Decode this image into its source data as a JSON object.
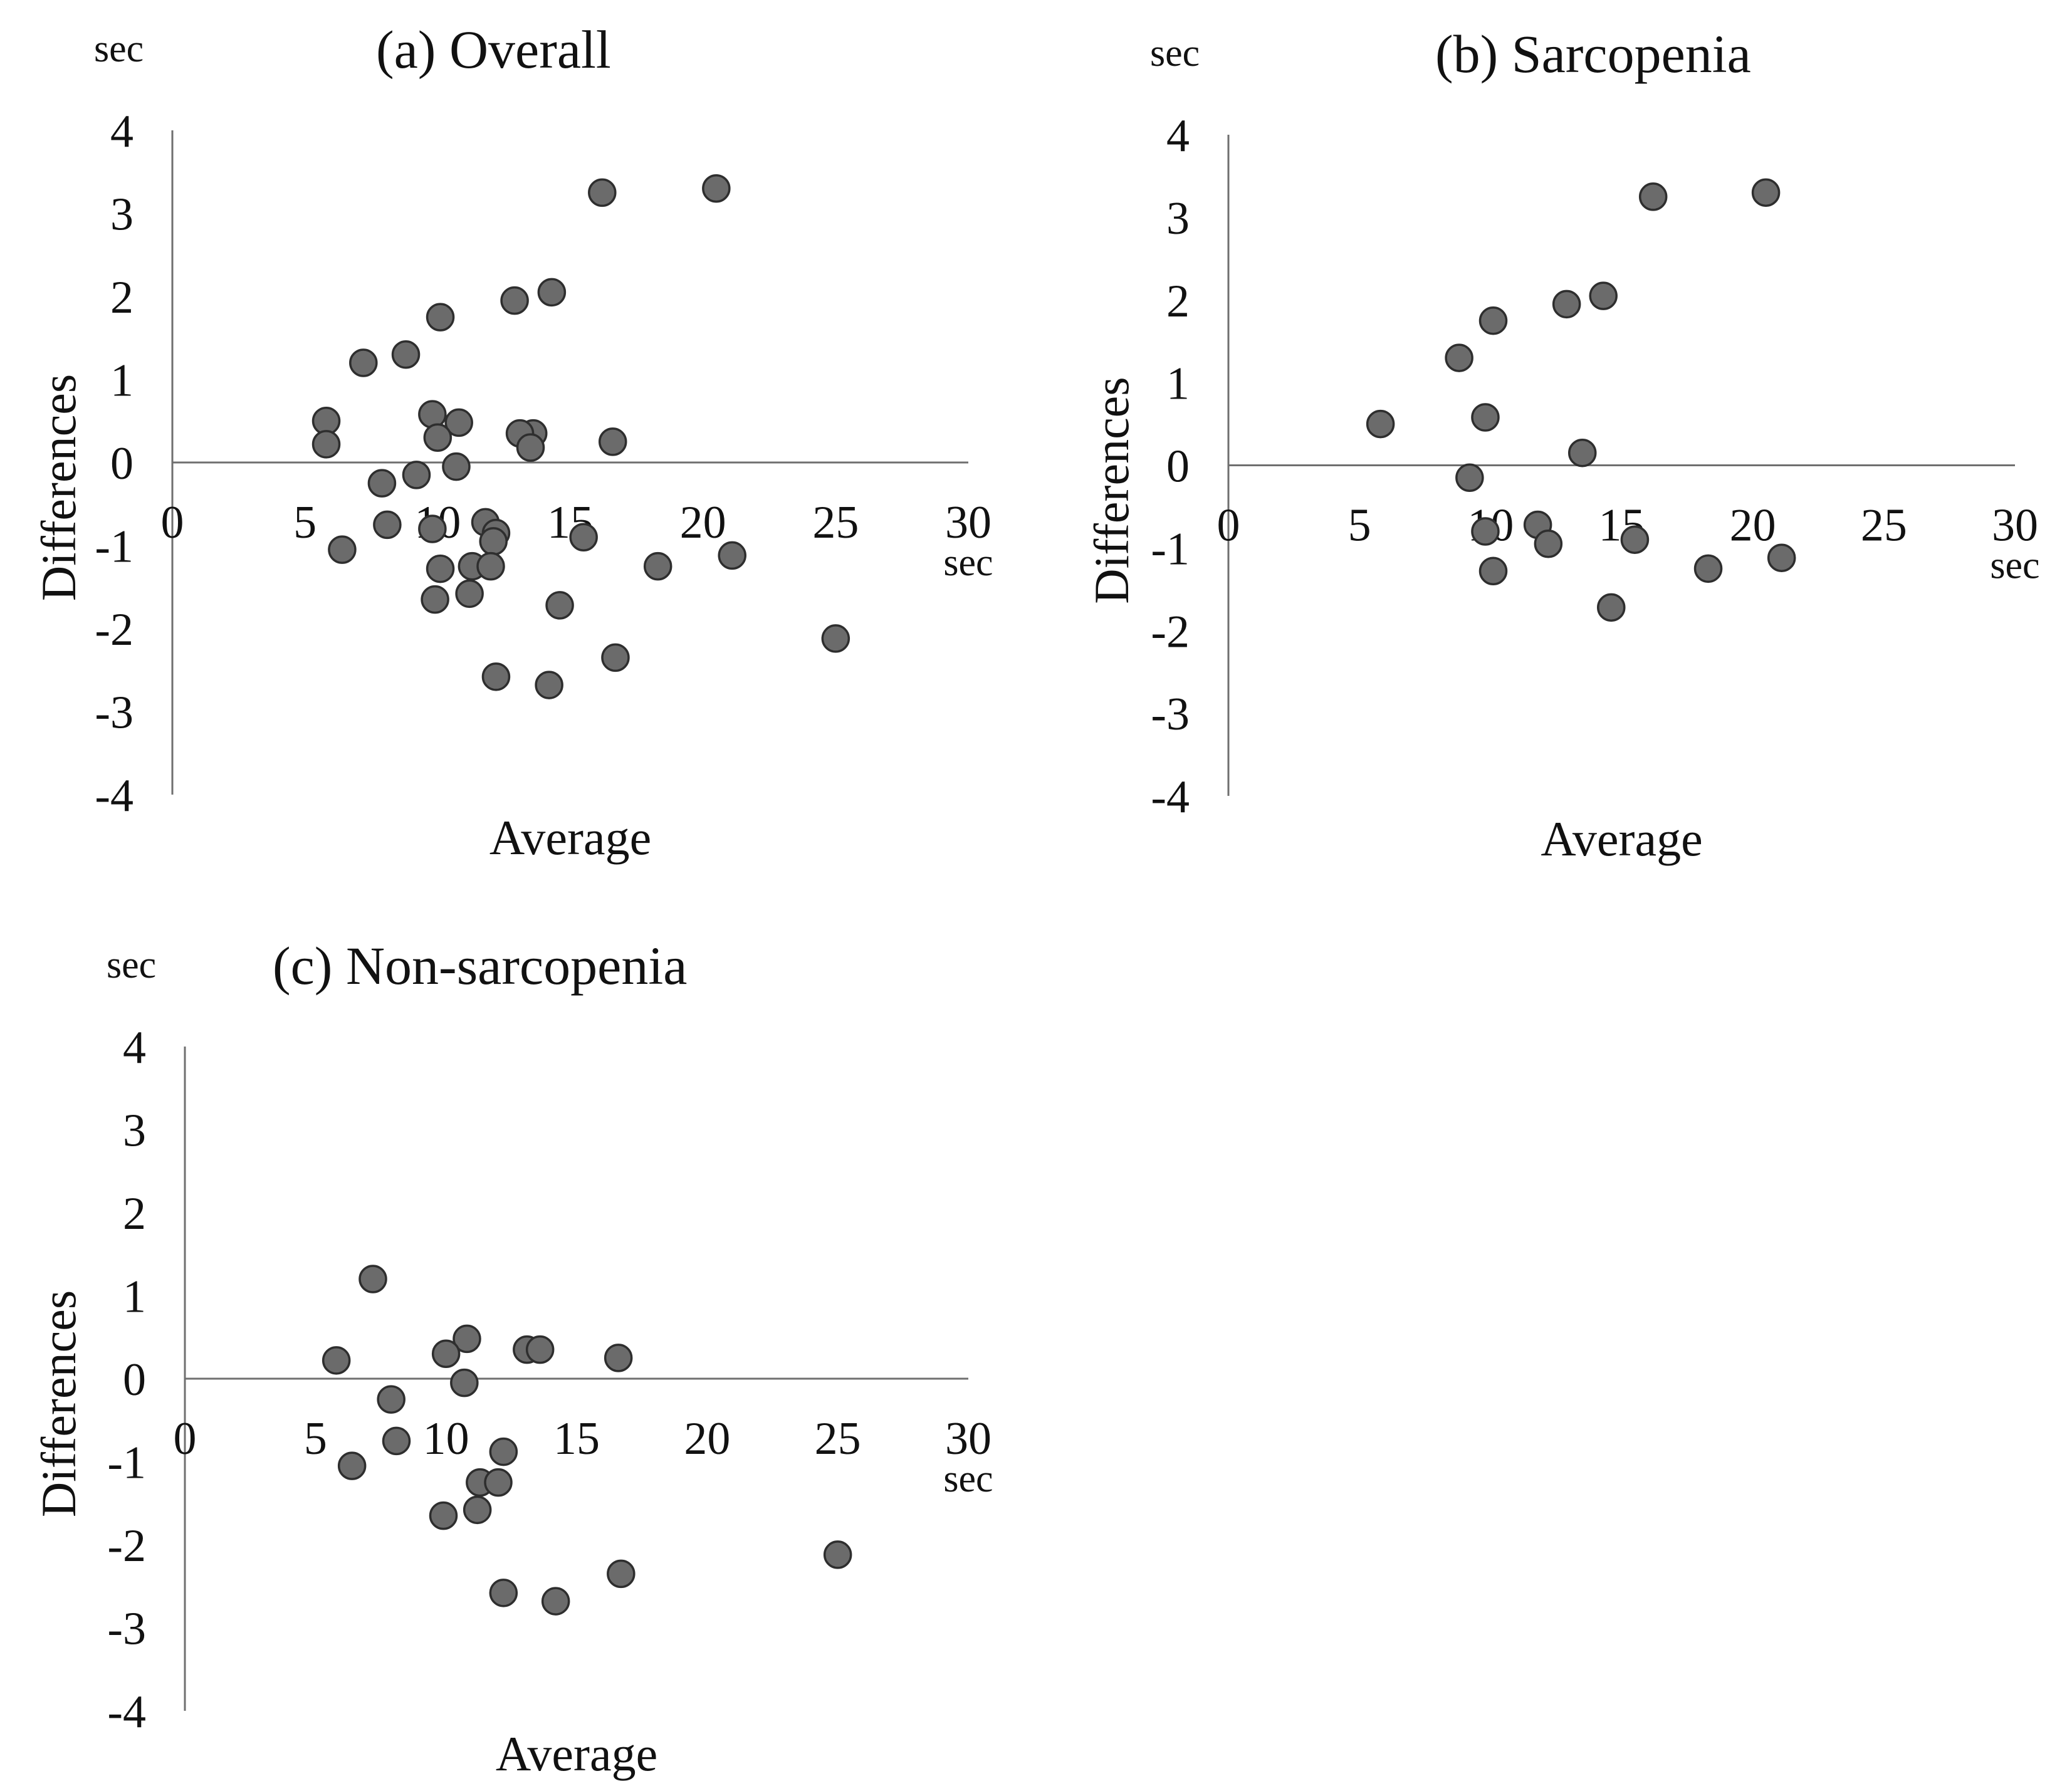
{
  "chart_data": [
    {
      "type": "scatter",
      "title": "(a) Overall",
      "xlabel": "Average",
      "ylabel": "Differences",
      "x_unit": "sec",
      "y_unit": "sec",
      "xlim": [
        0,
        30
      ],
      "ylim": [
        -4,
        4
      ],
      "xticks": [
        "0",
        "5",
        "10",
        "15",
        "20",
        "25",
        "30"
      ],
      "yticks": [
        "4",
        "3",
        "2",
        "1",
        "0",
        "-1",
        "-2",
        "-3",
        "-4"
      ],
      "grid": false,
      "marker_color": "#6b6b6b",
      "points": [
        {
          "x": 16.2,
          "y": 3.25
        },
        {
          "x": 20.5,
          "y": 3.3
        },
        {
          "x": 14.3,
          "y": 2.05
        },
        {
          "x": 12.9,
          "y": 1.95
        },
        {
          "x": 10.1,
          "y": 1.75
        },
        {
          "x": 8.8,
          "y": 1.3
        },
        {
          "x": 7.2,
          "y": 1.2
        },
        {
          "x": 5.8,
          "y": 0.5
        },
        {
          "x": 9.8,
          "y": 0.58
        },
        {
          "x": 10.8,
          "y": 0.48
        },
        {
          "x": 10.0,
          "y": 0.3
        },
        {
          "x": 5.8,
          "y": 0.22
        },
        {
          "x": 13.6,
          "y": 0.35
        },
        {
          "x": 13.1,
          "y": 0.35
        },
        {
          "x": 13.5,
          "y": 0.18
        },
        {
          "x": 16.6,
          "y": 0.25
        },
        {
          "x": 10.7,
          "y": -0.05
        },
        {
          "x": 9.2,
          "y": -0.15
        },
        {
          "x": 7.9,
          "y": -0.25
        },
        {
          "x": 8.1,
          "y": -0.75
        },
        {
          "x": 9.8,
          "y": -0.8
        },
        {
          "x": 11.8,
          "y": -0.72
        },
        {
          "x": 12.2,
          "y": -0.85
        },
        {
          "x": 12.1,
          "y": -0.95
        },
        {
          "x": 15.5,
          "y": -0.9
        },
        {
          "x": 6.4,
          "y": -1.05
        },
        {
          "x": 10.1,
          "y": -1.28
        },
        {
          "x": 11.3,
          "y": -1.25
        },
        {
          "x": 12.0,
          "y": -1.25
        },
        {
          "x": 18.3,
          "y": -1.25
        },
        {
          "x": 21.1,
          "y": -1.12
        },
        {
          "x": 9.9,
          "y": -1.65
        },
        {
          "x": 11.2,
          "y": -1.58
        },
        {
          "x": 14.6,
          "y": -1.72
        },
        {
          "x": 16.7,
          "y": -2.35
        },
        {
          "x": 25.0,
          "y": -2.12
        },
        {
          "x": 12.2,
          "y": -2.58
        },
        {
          "x": 14.2,
          "y": -2.68
        }
      ]
    },
    {
      "type": "scatter",
      "title": "(b) Sarcopenia",
      "xlabel": "Average",
      "ylabel": "Differences",
      "x_unit": "sec",
      "y_unit": "sec",
      "xlim": [
        0,
        30
      ],
      "ylim": [
        -4,
        4
      ],
      "xticks": [
        "0",
        "5",
        "10",
        "15",
        "20",
        "25",
        "30"
      ],
      "yticks": [
        "4",
        "3",
        "2",
        "1",
        "0",
        "-1",
        "-2",
        "-3",
        "-4"
      ],
      "grid": false,
      "marker_color": "#6b6b6b",
      "points": [
        {
          "x": 16.2,
          "y": 3.25
        },
        {
          "x": 20.5,
          "y": 3.3
        },
        {
          "x": 14.3,
          "y": 2.05
        },
        {
          "x": 12.9,
          "y": 1.95
        },
        {
          "x": 10.1,
          "y": 1.75
        },
        {
          "x": 8.8,
          "y": 1.3
        },
        {
          "x": 5.8,
          "y": 0.5
        },
        {
          "x": 9.8,
          "y": 0.58
        },
        {
          "x": 13.5,
          "y": 0.15
        },
        {
          "x": 9.2,
          "y": -0.15
        },
        {
          "x": 9.8,
          "y": -0.8
        },
        {
          "x": 11.8,
          "y": -0.72
        },
        {
          "x": 12.2,
          "y": -0.95
        },
        {
          "x": 15.5,
          "y": -0.9
        },
        {
          "x": 10.1,
          "y": -1.28
        },
        {
          "x": 18.3,
          "y": -1.25
        },
        {
          "x": 21.1,
          "y": -1.12
        },
        {
          "x": 14.6,
          "y": -1.72
        }
      ]
    },
    {
      "type": "scatter",
      "title": "(c) Non-sarcopenia",
      "xlabel": "Average",
      "ylabel": "Differences",
      "x_unit": "sec",
      "y_unit": "sec",
      "xlim": [
        0,
        30
      ],
      "ylim": [
        -4,
        4
      ],
      "xticks": [
        "0",
        "5",
        "10",
        "15",
        "20",
        "25",
        "30"
      ],
      "yticks": [
        "4",
        "3",
        "2",
        "1",
        "0",
        "-1",
        "-2",
        "-3",
        "-4"
      ],
      "grid": false,
      "marker_color": "#6b6b6b",
      "points": [
        {
          "x": 7.2,
          "y": 1.2
        },
        {
          "x": 10.8,
          "y": 0.48
        },
        {
          "x": 10.0,
          "y": 0.3
        },
        {
          "x": 5.8,
          "y": 0.22
        },
        {
          "x": 13.1,
          "y": 0.35
        },
        {
          "x": 13.6,
          "y": 0.35
        },
        {
          "x": 16.6,
          "y": 0.25
        },
        {
          "x": 10.7,
          "y": -0.05
        },
        {
          "x": 7.9,
          "y": -0.25
        },
        {
          "x": 8.1,
          "y": -0.75
        },
        {
          "x": 12.2,
          "y": -0.88
        },
        {
          "x": 6.4,
          "y": -1.05
        },
        {
          "x": 11.3,
          "y": -1.25
        },
        {
          "x": 12.0,
          "y": -1.25
        },
        {
          "x": 9.9,
          "y": -1.65
        },
        {
          "x": 11.2,
          "y": -1.58
        },
        {
          "x": 16.7,
          "y": -2.35
        },
        {
          "x": 25.0,
          "y": -2.12
        },
        {
          "x": 12.2,
          "y": -2.58
        },
        {
          "x": 14.2,
          "y": -2.68
        }
      ]
    }
  ]
}
